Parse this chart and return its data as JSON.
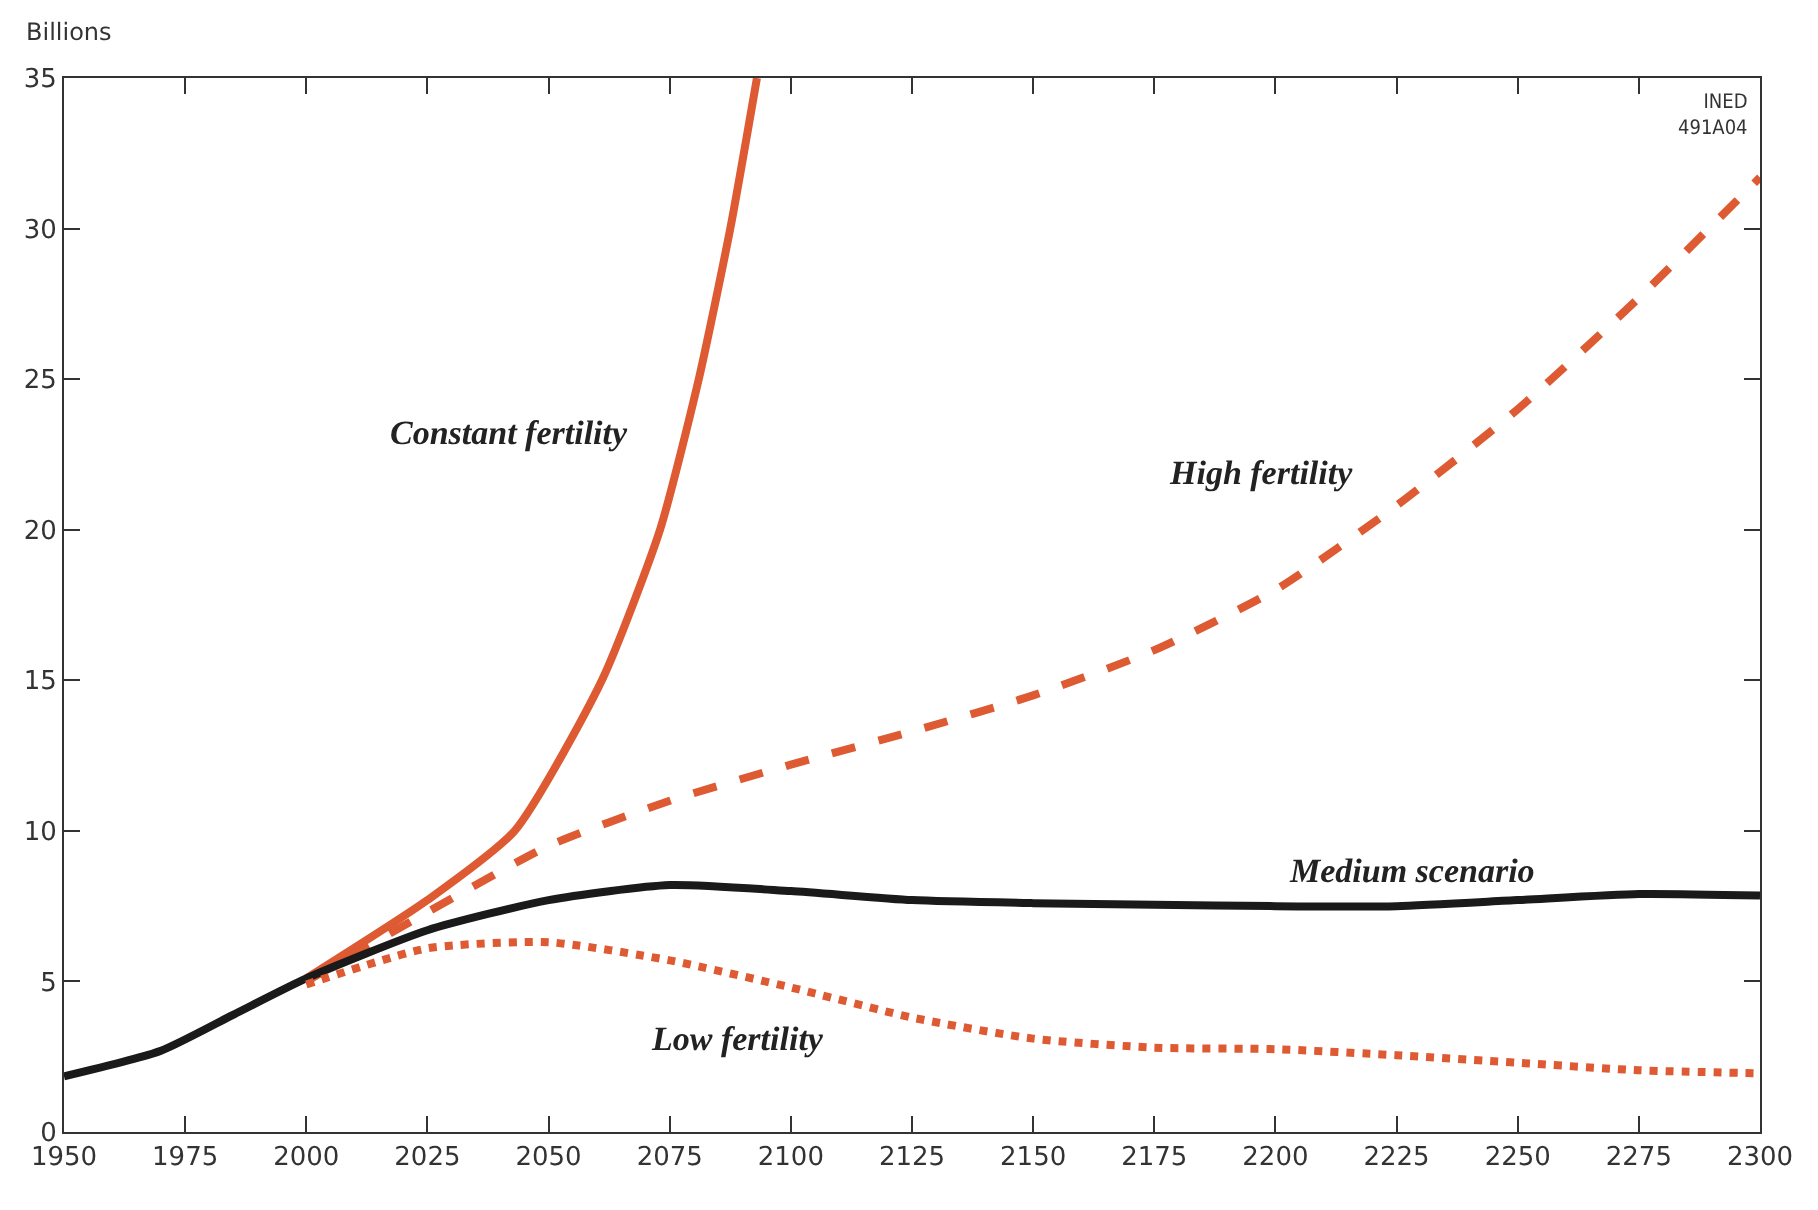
{
  "chart_data": {
    "type": "line",
    "ylabel": "Billions",
    "annotations": [
      "INED\n491A04"
    ],
    "xlim": [
      1950,
      2300
    ],
    "xticks": [
      1950,
      1975,
      2000,
      2025,
      2050,
      2075,
      2100,
      2125,
      2150,
      2175,
      2200,
      2225,
      2250,
      2275,
      2300
    ],
    "ylim": [
      0,
      35
    ],
    "yticks": [
      0,
      5,
      10,
      15,
      20,
      25,
      30,
      35
    ],
    "grid": false,
    "legend": false,
    "series": [
      {
        "name": "Constant fertility",
        "color": "#dd5a32",
        "line_style": "solid",
        "x": [
          2000,
          2025,
          2043,
          2061,
          2073,
          2081,
          2087.5,
          2093
        ],
        "values": [
          5.1,
          7.7,
          10,
          15,
          20,
          25,
          30,
          35
        ]
      },
      {
        "name": "High fertility",
        "color": "#dd5a32",
        "line_style": "dashed",
        "x": [
          2000,
          2025,
          2050,
          2075,
          2100,
          2125,
          2150,
          2175,
          2200,
          2225,
          2250,
          2275,
          2300
        ],
        "values": [
          5,
          7.3,
          9.5,
          11,
          12.2,
          13.3,
          14.5,
          16,
          18,
          20.8,
          24,
          27.7,
          31.7
        ]
      },
      {
        "name": "Medium scenario",
        "color": "#1a1a1a",
        "line_style": "solid",
        "x": [
          1950,
          1970,
          1985,
          2000,
          2025,
          2050,
          2075,
          2100,
          2125,
          2150,
          2175,
          2200,
          2225,
          2250,
          2275,
          2300
        ],
        "values": [
          1.85,
          2.7,
          3.9,
          5.1,
          6.7,
          7.7,
          8.2,
          8,
          7.7,
          7.6,
          7.55,
          7.5,
          7.5,
          7.7,
          7.9,
          7.85
        ]
      },
      {
        "name": "Low fertility",
        "color": "#dd5a32",
        "line_style": "dotted",
        "x": [
          2000,
          2025,
          2050,
          2075,
          2100,
          2125,
          2150,
          2175,
          2200,
          2225,
          2250,
          2275,
          2300
        ],
        "values": [
          4.9,
          6.1,
          6.3,
          5.7,
          4.8,
          3.8,
          3.1,
          2.8,
          2.75,
          2.55,
          2.3,
          2.05,
          1.95
        ]
      }
    ]
  }
}
